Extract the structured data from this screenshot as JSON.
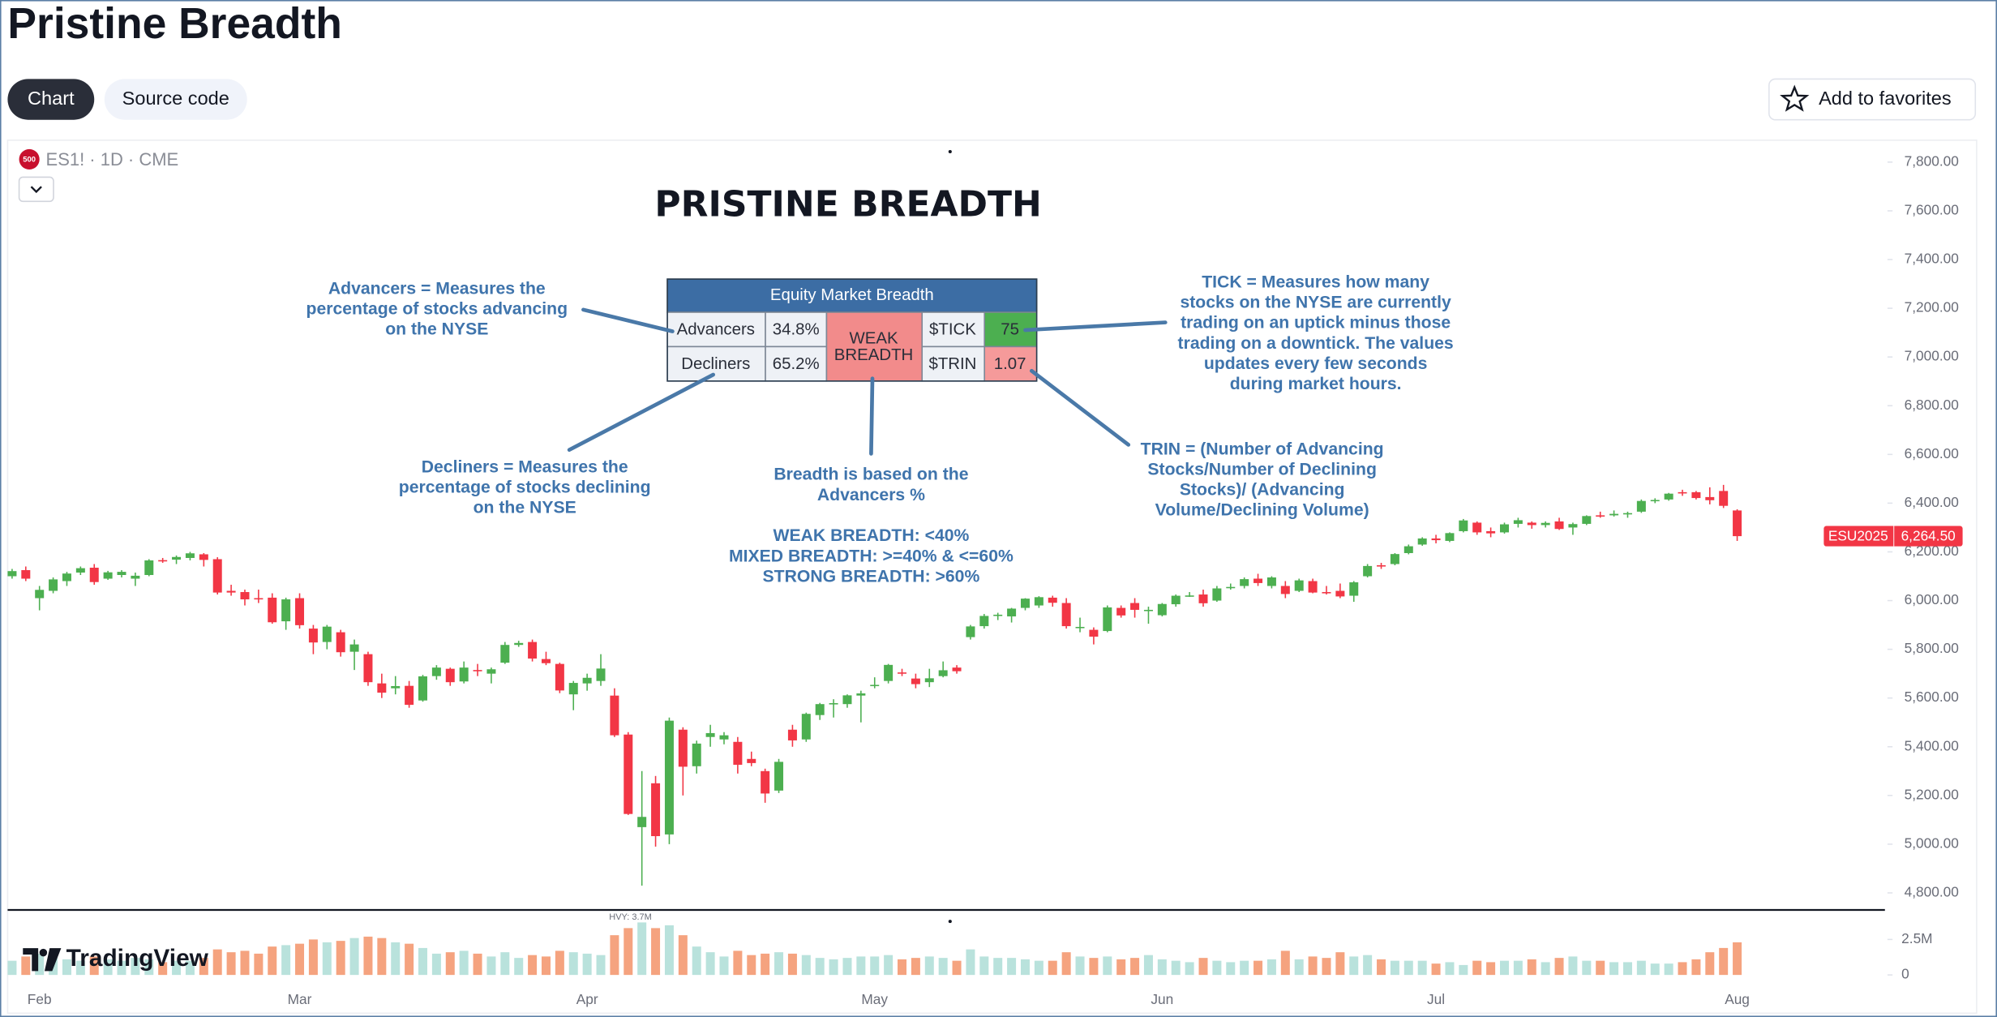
{
  "header": {
    "title": "Pristine Breadth",
    "tabs": [
      "Chart",
      "Source code"
    ],
    "favorite": "Add to favorites"
  },
  "chart_data": {
    "type": "candlestick",
    "title": "PRISTINE BREADTH",
    "symbol_logo": "500",
    "symbol_line": "ES1! · 1D · CME",
    "up_color": "#4caf50",
    "down_color": "#f23645",
    "volume_up_color": "#b9e2dc",
    "volume_down_color": "#f5a37f",
    "grid": false,
    "categories": [
      null,
      null,
      "Feb",
      null,
      null,
      null,
      null,
      null,
      null,
      null,
      null,
      null,
      null,
      null,
      null,
      null,
      null,
      null,
      null,
      null,
      null,
      "Mar",
      null,
      null,
      null,
      null,
      null,
      null,
      null,
      null,
      null,
      null,
      null,
      null,
      null,
      null,
      null,
      null,
      null,
      null,
      null,
      null,
      "Apr",
      null,
      null,
      null,
      null,
      null,
      null,
      null,
      null,
      null,
      null,
      null,
      null,
      null,
      null,
      null,
      null,
      null,
      null,
      null,
      null,
      "May",
      null,
      null,
      null,
      null,
      null,
      null,
      null,
      null,
      null,
      null,
      null,
      null,
      null,
      null,
      null,
      null,
      null,
      null,
      null,
      null,
      "Jun",
      null,
      null,
      null,
      null,
      null,
      null,
      null,
      null,
      null,
      null,
      null,
      null,
      null,
      null,
      null,
      null,
      null,
      null,
      null,
      "Jul",
      null,
      null,
      null,
      null,
      null,
      null,
      null,
      null,
      null,
      null,
      null,
      null,
      null,
      null,
      null,
      null,
      null,
      null,
      null,
      null,
      null,
      "Aug"
    ],
    "ohlc": [
      [
        6100,
        6130,
        6090,
        6121
      ],
      [
        6125,
        6140,
        6080,
        6090
      ],
      [
        6010,
        6060,
        5960,
        6044
      ],
      [
        6040,
        6095,
        6030,
        6087
      ],
      [
        6080,
        6118,
        6060,
        6111
      ],
      [
        6115,
        6140,
        6105,
        6133
      ],
      [
        6135,
        6150,
        6065,
        6076
      ],
      [
        6090,
        6122,
        6085,
        6116
      ],
      [
        6105,
        6125,
        6095,
        6118
      ],
      [
        6090,
        6115,
        6060,
        6102
      ],
      [
        6105,
        6170,
        6100,
        6165
      ],
      [
        6166,
        6175,
        6155,
        6165
      ],
      [
        6168,
        6185,
        6150,
        6179
      ],
      [
        6175,
        6200,
        6165,
        6194
      ],
      [
        6190,
        6195,
        6140,
        6167
      ],
      [
        6170,
        6178,
        6025,
        6033
      ],
      [
        6040,
        6065,
        6020,
        6033
      ],
      [
        6035,
        6045,
        5980,
        6005
      ],
      [
        6010,
        6045,
        5990,
        6006
      ],
      [
        6012,
        6030,
        5905,
        5911
      ],
      [
        5915,
        6012,
        5880,
        6005
      ],
      [
        6010,
        6030,
        5885,
        5899
      ],
      [
        5885,
        5900,
        5780,
        5828
      ],
      [
        5830,
        5900,
        5800,
        5893
      ],
      [
        5870,
        5880,
        5770,
        5788
      ],
      [
        5790,
        5840,
        5715,
        5820
      ],
      [
        5780,
        5790,
        5650,
        5665
      ],
      [
        5660,
        5700,
        5600,
        5622
      ],
      [
        5640,
        5690,
        5615,
        5649
      ],
      [
        5650,
        5670,
        5560,
        5572
      ],
      [
        5590,
        5695,
        5585,
        5689
      ],
      [
        5690,
        5735,
        5675,
        5725
      ],
      [
        5720,
        5725,
        5650,
        5665
      ],
      [
        5668,
        5750,
        5660,
        5725
      ],
      [
        5715,
        5740,
        5690,
        5713
      ],
      [
        5700,
        5725,
        5660,
        5718
      ],
      [
        5745,
        5830,
        5740,
        5818
      ],
      [
        5818,
        5835,
        5810,
        5826
      ],
      [
        5830,
        5840,
        5750,
        5762
      ],
      [
        5760,
        5790,
        5735,
        5743
      ],
      [
        5740,
        5745,
        5620,
        5631
      ],
      [
        5615,
        5670,
        5550,
        5662
      ],
      [
        5660,
        5700,
        5630,
        5683
      ],
      [
        5670,
        5780,
        5650,
        5721
      ],
      [
        5610,
        5640,
        5440,
        5447
      ],
      [
        5450,
        5460,
        5120,
        5124
      ],
      [
        5070,
        5300,
        4830,
        5112
      ],
      [
        5250,
        5280,
        4990,
        5033
      ],
      [
        5040,
        5520,
        5000,
        5507
      ],
      [
        5470,
        5480,
        5200,
        5318
      ],
      [
        5320,
        5425,
        5290,
        5413
      ],
      [
        5440,
        5490,
        5400,
        5456
      ],
      [
        5430,
        5460,
        5410,
        5447
      ],
      [
        5420,
        5440,
        5290,
        5326
      ],
      [
        5350,
        5380,
        5320,
        5333
      ],
      [
        5300,
        5310,
        5170,
        5208
      ],
      [
        5220,
        5350,
        5210,
        5338
      ],
      [
        5470,
        5490,
        5400,
        5426
      ],
      [
        5430,
        5540,
        5420,
        5535
      ],
      [
        5530,
        5580,
        5510,
        5575
      ],
      [
        5575,
        5595,
        5520,
        5579
      ],
      [
        5575,
        5615,
        5560,
        5611
      ],
      [
        5610,
        5630,
        5500,
        5619
      ],
      [
        5650,
        5685,
        5640,
        5654
      ],
      [
        5670,
        5740,
        5660,
        5736
      ],
      [
        5705,
        5720,
        5690,
        5700
      ],
      [
        5680,
        5700,
        5640,
        5657
      ],
      [
        5665,
        5720,
        5645,
        5681
      ],
      [
        5690,
        5750,
        5685,
        5714
      ],
      [
        5725,
        5735,
        5700,
        5710
      ],
      [
        5850,
        5900,
        5840,
        5894
      ],
      [
        5895,
        5945,
        5885,
        5937
      ],
      [
        5940,
        5950,
        5920,
        5942
      ],
      [
        5935,
        5970,
        5910,
        5967
      ],
      [
        5970,
        6010,
        5960,
        6008
      ],
      [
        5980,
        6018,
        5970,
        6014
      ],
      [
        6012,
        6020,
        5975,
        5991
      ],
      [
        5990,
        6010,
        5885,
        5895
      ],
      [
        5890,
        5930,
        5870,
        5892
      ],
      [
        5880,
        5890,
        5820,
        5852
      ],
      [
        5875,
        5980,
        5870,
        5972
      ],
      [
        5970,
        5980,
        5930,
        5939
      ],
      [
        5990,
        6010,
        5930,
        5962
      ],
      [
        5960,
        5975,
        5905,
        5962
      ],
      [
        5940,
        5990,
        5935,
        5986
      ],
      [
        5985,
        6025,
        5975,
        6020
      ],
      [
        6020,
        6035,
        6015,
        6021
      ],
      [
        6025,
        6045,
        5975,
        5989
      ],
      [
        6000,
        6060,
        5995,
        6050
      ],
      [
        6055,
        6070,
        6045,
        6056
      ],
      [
        6060,
        6095,
        6050,
        6088
      ],
      [
        6090,
        6110,
        6060,
        6072
      ],
      [
        6060,
        6100,
        6050,
        6095
      ],
      [
        6060,
        6080,
        6010,
        6027
      ],
      [
        6040,
        6090,
        6035,
        6083
      ],
      [
        6080,
        6090,
        6030,
        6033
      ],
      [
        6035,
        6060,
        6025,
        6031
      ],
      [
        6040,
        6070,
        6010,
        6017
      ],
      [
        6020,
        6080,
        5995,
        6075
      ],
      [
        6100,
        6150,
        6095,
        6142
      ],
      [
        6145,
        6155,
        6130,
        6142
      ],
      [
        6150,
        6195,
        6145,
        6191
      ],
      [
        6195,
        6230,
        6190,
        6223
      ],
      [
        6230,
        6260,
        6225,
        6255
      ],
      [
        6255,
        6270,
        6235,
        6248
      ],
      [
        6245,
        6280,
        6240,
        6277
      ],
      [
        6285,
        6335,
        6280,
        6329
      ],
      [
        6320,
        6325,
        6270,
        6280
      ],
      [
        6285,
        6300,
        6260,
        6276
      ],
      [
        6280,
        6320,
        6275,
        6313
      ],
      [
        6315,
        6340,
        6300,
        6330
      ],
      [
        6320,
        6325,
        6295,
        6310
      ],
      [
        6310,
        6325,
        6300,
        6319
      ],
      [
        6325,
        6340,
        6290,
        6294
      ],
      [
        6300,
        6320,
        6270,
        6314
      ],
      [
        6315,
        6350,
        6310,
        6347
      ],
      [
        6350,
        6365,
        6340,
        6347
      ],
      [
        6350,
        6370,
        6345,
        6356
      ],
      [
        6355,
        6365,
        6340,
        6359
      ],
      [
        6365,
        6415,
        6360,
        6409
      ],
      [
        6410,
        6420,
        6400,
        6413
      ],
      [
        6415,
        6442,
        6410,
        6439
      ],
      [
        6445,
        6455,
        6430,
        6440
      ],
      [
        6445,
        6450,
        6415,
        6421
      ],
      [
        6425,
        6465,
        6395,
        6412
      ],
      [
        6450,
        6475,
        6380,
        6389
      ],
      [
        6370,
        6375,
        6245,
        6264.5
      ]
    ],
    "volume": [
      1.0,
      1.3,
      1.5,
      1.2,
      1.1,
      1.0,
      1.3,
      1.1,
      1.0,
      1.2,
      1.1,
      0.9,
      1.0,
      1.0,
      1.2,
      1.8,
      1.6,
      1.7,
      1.5,
      2.0,
      2.1,
      2.2,
      2.5,
      2.3,
      2.4,
      2.6,
      2.7,
      2.6,
      2.3,
      2.2,
      1.9,
      1.5,
      1.6,
      1.7,
      1.5,
      1.3,
      1.6,
      1.2,
      1.4,
      1.3,
      1.7,
      1.6,
      1.5,
      1.4,
      2.8,
      3.3,
      3.7,
      3.3,
      3.5,
      2.8,
      2.0,
      1.6,
      1.3,
      1.7,
      1.4,
      1.5,
      1.6,
      1.5,
      1.4,
      1.2,
      1.1,
      1.2,
      1.3,
      1.3,
      1.4,
      1.1,
      1.2,
      1.3,
      1.2,
      1.0,
      1.8,
      1.3,
      1.2,
      1.2,
      1.1,
      1.0,
      1.0,
      1.6,
      1.3,
      1.2,
      1.3,
      1.1,
      1.2,
      1.4,
      1.1,
      1.0,
      0.9,
      1.2,
      1.0,
      0.9,
      1.0,
      1.0,
      1.1,
      1.7,
      1.1,
      1.3,
      1.2,
      1.6,
      1.3,
      1.4,
      1.1,
      1.0,
      1.0,
      1.0,
      0.8,
      0.9,
      0.7,
      1.0,
      0.9,
      1.0,
      1.0,
      1.1,
      0.9,
      1.2,
      1.3,
      1.0,
      1.0,
      0.9,
      0.9,
      1.0,
      0.8,
      0.8,
      0.9,
      1.1,
      1.6,
      1.9,
      2.3
    ],
    "volume_label": "HVY: 3.7M",
    "ylim": [
      4730,
      7890
    ],
    "yticks": [
      {
        "value": 4800,
        "label": "4,800.00"
      },
      {
        "value": 5000,
        "label": "5,000.00"
      },
      {
        "value": 5200,
        "label": "5,200.00"
      },
      {
        "value": 5400,
        "label": "5,400.00"
      },
      {
        "value": 5600,
        "label": "5,600.00"
      },
      {
        "value": 5800,
        "label": "5,800.00"
      },
      {
        "value": 6000,
        "label": "6,000.00"
      },
      {
        "value": 6200,
        "label": "6,200.00"
      },
      {
        "value": 6400,
        "label": "6,400.00"
      },
      {
        "value": 6600,
        "label": "6,600.00"
      },
      {
        "value": 6800,
        "label": "6,800.00"
      },
      {
        "value": 7000,
        "label": "7,000.00"
      },
      {
        "value": 7200,
        "label": "7,200.00"
      },
      {
        "value": 7400,
        "label": "7,400.00"
      },
      {
        "value": 7600,
        "label": "7,600.00"
      },
      {
        "value": 7800,
        "label": "7,800.00"
      }
    ],
    "volume_lim": [
      0,
      4.4
    ],
    "volume_ticks": [
      0,
      {
        "value": 2.5,
        "label": "2.5M"
      }
    ],
    "last_price": {
      "contract": "ESU2025",
      "label": "6,264.50"
    }
  },
  "table": {
    "title": "Equity Market Breadth",
    "rows": [
      [
        "Advancers",
        "34.8%",
        "$TICK",
        "75"
      ],
      [
        "Decliners",
        "65.2%",
        "$TRIN",
        "1.07"
      ]
    ],
    "status": [
      "WEAK",
      "BREADTH"
    ]
  },
  "annotations": [
    {
      "lines": [
        "Advancers = Measures the",
        "percentage of stocks advancing",
        "on the NYSE"
      ]
    },
    {
      "lines": [
        "Decliners = Measures the",
        "percentage of stocks declining",
        "on the NYSE"
      ]
    },
    {
      "lines": [
        "Breadth is based on the",
        "Advancers %"
      ]
    },
    {
      "lines": [
        "TICK = Measures how many",
        "stocks on the NYSE are currently",
        "trading on an uptick minus those",
        "trading on a downtick. The values",
        "updates every few seconds",
        "during market hours."
      ]
    },
    {
      "lines": [
        "TRIN = (Number of Advancing",
        "Stocks/Number of Declining",
        "Stocks)/ (Advancing",
        "Volume/Declining Volume)"
      ]
    }
  ],
  "breadth_rules": [
    "WEAK BREADTH: <40%",
    "MIXED BREADTH: >=40% & <=60%",
    "STRONG BREADTH: >60%"
  ],
  "brand": "TradingView"
}
